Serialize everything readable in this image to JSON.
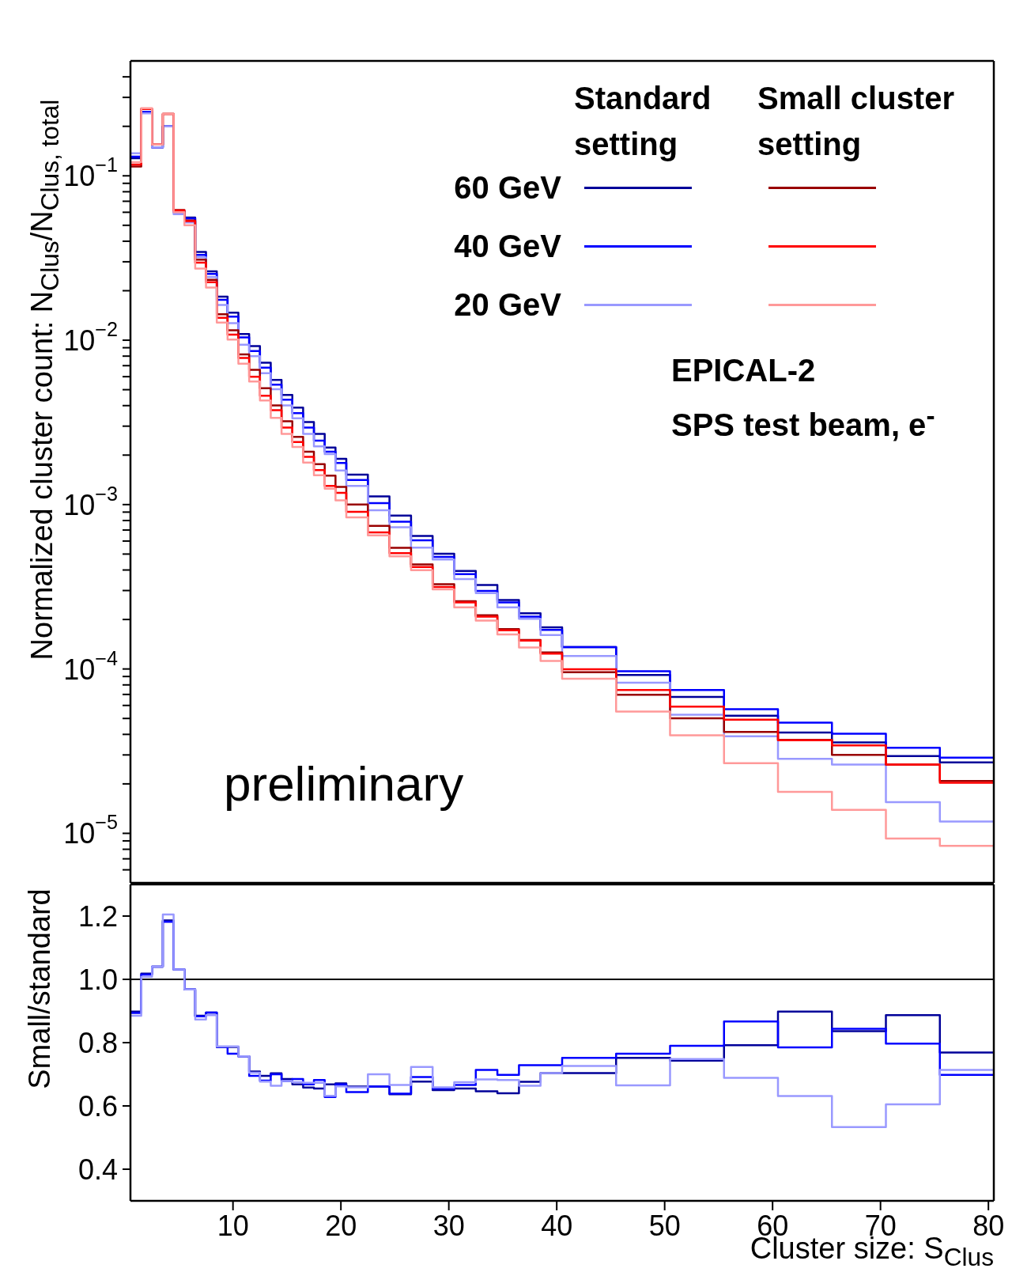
{
  "chart_data": [
    {
      "type": "histogram",
      "ylabel": "Normalized cluster count: N$_{Clus}$/N$_{Clus, total}$",
      "log": "y",
      "legend": "top right",
      "tick_labels": "y",
      "annotations": [
        "Standard setting",
        "Small cluster setting",
        "EPICAL-2",
        "SPS test beam, e$^{-}$",
        "preliminary"
      ],
      "xlim": [
        0.5,
        80.5
      ],
      "xticks": [
        10,
        20,
        30,
        40,
        50,
        60,
        70,
        80
      ],
      "ylim": [
        5e-06,
        0.5
      ],
      "yticks": [
        {
          "value": 6e-06,
          "label": null
        },
        {
          "value": 7e-06,
          "label": null
        },
        {
          "value": 8e-06,
          "label": null
        },
        {
          "value": 9e-06,
          "label": null
        },
        {
          "value": 1e-05,
          "label": "10$^{−5}$"
        },
        {
          "value": 2e-05,
          "label": null
        },
        {
          "value": 3e-05,
          "label": null
        },
        {
          "value": 4e-05,
          "label": null
        },
        {
          "value": 5e-05,
          "label": null
        },
        {
          "value": 6e-05,
          "label": null
        },
        {
          "value": 7e-05,
          "label": null
        },
        {
          "value": 8e-05,
          "label": null
        },
        {
          "value": 9e-05,
          "label": null
        },
        {
          "value": 0.0001,
          "label": "10$^{−4}$"
        },
        {
          "value": 0.0002,
          "label": null
        },
        {
          "value": 0.0003,
          "label": null
        },
        {
          "value": 0.0004,
          "label": null
        },
        {
          "value": 0.0005,
          "label": null
        },
        {
          "value": 0.0006,
          "label": null
        },
        {
          "value": 0.0007,
          "label": null
        },
        {
          "value": 0.0008,
          "label": null
        },
        {
          "value": 0.0009,
          "label": null
        },
        {
          "value": 0.001,
          "label": "10$^{−3}$"
        },
        {
          "value": 0.002,
          "label": null
        },
        {
          "value": 0.003,
          "label": null
        },
        {
          "value": 0.004,
          "label": null
        },
        {
          "value": 0.005,
          "label": null
        },
        {
          "value": 0.006,
          "label": null
        },
        {
          "value": 0.007,
          "label": null
        },
        {
          "value": 0.008,
          "label": null
        },
        {
          "value": 0.009,
          "label": null
        },
        {
          "value": 0.01,
          "label": "10$^{−2}$"
        },
        {
          "value": 0.02,
          "label": null
        },
        {
          "value": 0.03,
          "label": null
        },
        {
          "value": 0.04,
          "label": null
        },
        {
          "value": 0.05,
          "label": null
        },
        {
          "value": 0.06,
          "label": null
        },
        {
          "value": 0.07,
          "label": null
        },
        {
          "value": 0.08,
          "label": null
        },
        {
          "value": 0.09,
          "label": null
        },
        {
          "value": 0.1,
          "label": "10$^{−1}$"
        },
        {
          "value": 0.2,
          "label": null
        },
        {
          "value": 0.3,
          "label": null
        },
        {
          "value": 0.4,
          "label": null
        }
      ],
      "bins": [
        0.5,
        1.5,
        2.5,
        3.5,
        4.5,
        5.5,
        6.5,
        7.5,
        8.5,
        9.5,
        10.5,
        11.5,
        12.5,
        13.5,
        14.5,
        15.5,
        16.5,
        17.5,
        18.5,
        19.5,
        20.5,
        22.5,
        24.5,
        26.5,
        28.5,
        30.5,
        32.5,
        34.5,
        36.5,
        38.5,
        40.5,
        45.5,
        50.5,
        55.5,
        60.5,
        65.5,
        70.5,
        75.5,
        80.5
      ],
      "series": [
        {
          "name": "60 GeV",
          "color": "#000099",
          "values": [
            0.128,
            0.243,
            0.149,
            0.2,
            0.0605,
            0.0558,
            0.0344,
            0.0262,
            0.0184,
            0.0147,
            0.0109,
            0.0092,
            0.0073,
            0.00574,
            0.00465,
            0.00389,
            0.00318,
            0.00269,
            0.00222,
            0.0019,
            0.00152,
            0.00112,
            0.000857,
            0.000644,
            0.000502,
            0.000395,
            0.000324,
            0.000263,
            0.000218,
            0.000179,
            0.000136,
            9.2e-05,
            6.76e-05,
            5.19e-05,
            4.1e-05,
            3.57e-05,
            2.95e-05,
            2.7e-05
          ]
        },
        {
          "name": "40 GeV",
          "color": "#0000ff",
          "values": [
            0.131,
            0.245,
            0.149,
            0.2,
            0.06,
            0.055,
            0.033,
            0.0253,
            0.0176,
            0.0139,
            0.0104,
            0.0086,
            0.0068,
            0.00537,
            0.00435,
            0.0036,
            0.00294,
            0.00245,
            0.0021,
            0.00179,
            0.00141,
            0.00102,
            0.000786,
            0.000606,
            0.000481,
            0.000378,
            0.000298,
            0.000254,
            0.000208,
            0.000173,
            0.000136,
            9.68e-05,
            7.44e-05,
            5.69e-05,
            4.72e-05,
            4.04e-05,
            3.32e-05,
            2.89e-05
          ]
        },
        {
          "name": "20 GeV",
          "color": "#9999ff",
          "values": [
            0.137,
            0.24,
            0.149,
            0.2,
            0.0585,
            0.052,
            0.0319,
            0.0242,
            0.0164,
            0.0127,
            0.0094,
            0.008,
            0.0063,
            0.00503,
            0.00401,
            0.00335,
            0.00269,
            0.00226,
            0.00203,
            0.00161,
            0.0013,
            0.000923,
            0.000727,
            0.000548,
            0.000463,
            0.000352,
            0.000289,
            0.000237,
            0.000202,
            0.000161,
            0.00012,
            8.24e-05,
            5.27e-05,
            3.89e-05,
            2.84e-05,
            2.62e-05,
            1.55e-05,
            1.18e-05
          ]
        },
        {
          "color": "#990000",
          "values": [
            0.114,
            0.255,
            0.155,
            0.238,
            0.062,
            0.0535,
            0.0309,
            0.0233,
            0.0144,
            0.0115,
            0.0082,
            0.0066,
            0.0051,
            0.00401,
            0.00321,
            0.00258,
            0.0021,
            0.00176,
            0.0015,
            0.00128,
            0.001,
            0.000743,
            0.000545,
            0.000432,
            0.000328,
            0.000258,
            0.000212,
            0.000175,
            0.00015,
            0.000126,
            9.55e-05,
            6.97e-05,
            5.01e-05,
            4.14e-05,
            3.7e-05,
            3e-05,
            2.62e-05,
            2.08e-05
          ]
        },
        {
          "color": "#ff0000",
          "values": [
            0.117,
            0.255,
            0.155,
            0.238,
            0.0615,
            0.053,
            0.0296,
            0.0225,
            0.0137,
            0.0108,
            0.0078,
            0.006,
            0.0046,
            0.00375,
            0.00294,
            0.0024,
            0.00195,
            0.00162,
            0.0013,
            0.00118,
            0.000904,
            0.000678,
            0.000507,
            0.000417,
            0.000315,
            0.000254,
            0.000208,
            0.000172,
            0.000149,
            0.000124,
            9.97e-05,
            7.44e-05,
            5.9e-05,
            4.92e-05,
            3.68e-05,
            3.43e-05,
            2.62e-05,
            2.03e-05
          ]
        },
        {
          "color": "#ff9999",
          "values": [
            0.121,
            0.258,
            0.155,
            0.238,
            0.06,
            0.05,
            0.0273,
            0.0209,
            0.0128,
            0.0101,
            0.0072,
            0.0056,
            0.0043,
            0.00337,
            0.00269,
            0.00224,
            0.0018,
            0.00151,
            0.00125,
            0.00106,
            0.000835,
            0.000649,
            0.000485,
            0.000399,
            0.000305,
            0.000237,
            0.000197,
            0.000162,
            0.000135,
            0.000112,
            8.71e-05,
            5.51e-05,
            3.95e-05,
            2.67e-05,
            1.79e-05,
            1.39e-05,
            9.3e-06,
            8.4e-06
          ]
        }
      ]
    },
    {
      "type": "histogram",
      "ylabel": "Small/standard",
      "xlabel": "Cluster size: S$_{Clus}$",
      "xlim": [
        0.5,
        80.5
      ],
      "xticks": [
        10,
        20,
        30,
        40,
        50,
        60,
        70,
        80
      ],
      "ylim": [
        0.3,
        1.3
      ],
      "yticks": [
        0.4,
        0.6,
        0.8,
        {
          "value": 1,
          "label": "1.0"
        },
        1.2
      ],
      "ref_lines": [
        {
          "axis": "y",
          "value": 1,
          "color": "#000000"
        }
      ],
      "bins": [
        0.5,
        1.5,
        2.5,
        3.5,
        4.5,
        5.5,
        6.5,
        7.5,
        8.5,
        9.5,
        10.5,
        11.5,
        12.5,
        13.5,
        14.5,
        15.5,
        16.5,
        17.5,
        18.5,
        19.5,
        20.5,
        22.5,
        24.5,
        26.5,
        28.5,
        30.5,
        32.5,
        34.5,
        36.5,
        38.5,
        40.5,
        45.5,
        50.5,
        55.5,
        60.5,
        65.5,
        70.5,
        75.5,
        80.5
      ],
      "series": [
        {
          "color": "#000099",
          "values": [
            0.898,
            1.018,
            1.04,
            1.186,
            1.031,
            0.968,
            0.885,
            0.895,
            0.786,
            0.786,
            0.757,
            0.709,
            0.695,
            0.703,
            0.685,
            0.668,
            0.658,
            0.655,
            0.668,
            0.671,
            0.661,
            0.661,
            0.637,
            0.677,
            0.65,
            0.655,
            0.646,
            0.64,
            0.676,
            0.704,
            0.704,
            0.752,
            0.743,
            0.792,
            0.898,
            0.836,
            0.887,
            0.769
          ]
        },
        {
          "color": "#0000ff",
          "values": [
            0.894,
            1.015,
            1.04,
            1.182,
            1.031,
            0.968,
            0.883,
            0.895,
            0.786,
            0.765,
            0.757,
            0.695,
            0.68,
            0.7,
            0.679,
            0.685,
            0.668,
            0.682,
            0.628,
            0.668,
            0.644,
            0.661,
            0.639,
            0.691,
            0.655,
            0.666,
            0.714,
            0.698,
            0.729,
            0.729,
            0.752,
            0.765,
            0.79,
            0.867,
            0.785,
            0.844,
            0.797,
            0.698
          ]
        },
        {
          "color": "#9999ff",
          "values": [
            0.885,
            1.008,
            1.04,
            1.205,
            1.031,
            0.968,
            0.873,
            0.887,
            0.788,
            0.788,
            0.757,
            0.705,
            0.677,
            0.664,
            0.679,
            0.675,
            0.673,
            0.673,
            0.632,
            0.662,
            0.659,
            0.7,
            0.666,
            0.723,
            0.659,
            0.675,
            0.684,
            0.682,
            0.664,
            0.704,
            0.726,
            0.665,
            0.748,
            0.689,
            0.631,
            0.533,
            0.605,
            0.714
          ]
        }
      ]
    }
  ]
}
